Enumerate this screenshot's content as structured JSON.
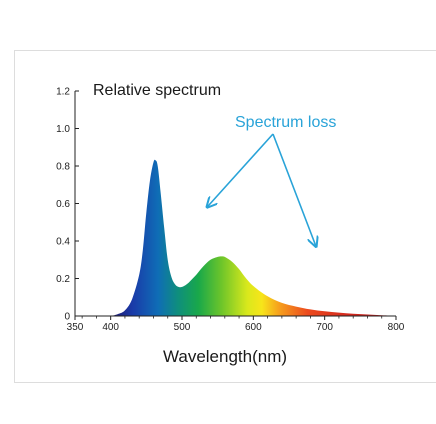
{
  "chart_data": {
    "type": "area",
    "title": "Relative spectrum",
    "xlabel": "Wavelength(nm)",
    "ylabel": "",
    "xlim": [
      350,
      800
    ],
    "ylim": [
      0,
      1.2
    ],
    "x_ticks": [
      350,
      400,
      500,
      600,
      700,
      800
    ],
    "x_tick_labels": [
      "350",
      "400",
      "500",
      "600",
      "700",
      "800"
    ],
    "y_ticks": [
      0,
      0.2,
      0.4,
      0.6,
      0.8,
      1.0,
      1.2
    ],
    "y_tick_labels": [
      "0",
      "0.2",
      "0.4",
      "0.6",
      "0.8",
      "1.0",
      "1.2"
    ],
    "grid": false,
    "legend": "none",
    "series": [
      {
        "fill": "visible-spectrum gradient",
        "x": [
          400,
          410,
          420,
          430,
          440,
          445,
          450,
          455,
          460,
          463,
          466,
          470,
          475,
          480,
          485,
          490,
          495,
          500,
          505,
          510,
          520,
          530,
          540,
          550,
          555,
          560,
          570,
          580,
          590,
          600,
          620,
          640,
          660,
          680,
          700,
          720,
          740,
          760,
          780,
          800
        ],
        "y": [
          0,
          0.01,
          0.03,
          0.09,
          0.22,
          0.35,
          0.55,
          0.72,
          0.82,
          0.83,
          0.8,
          0.66,
          0.47,
          0.3,
          0.21,
          0.17,
          0.155,
          0.155,
          0.165,
          0.18,
          0.22,
          0.265,
          0.3,
          0.315,
          0.318,
          0.315,
          0.29,
          0.25,
          0.2,
          0.16,
          0.105,
          0.07,
          0.05,
          0.035,
          0.025,
          0.018,
          0.012,
          0.008,
          0.004,
          0
        ]
      }
    ],
    "annotations": [
      {
        "text": "Spectrum loss",
        "color": "#29a3d8",
        "arrow_targets": [
          {
            "x": 535,
            "y": 0.58
          },
          {
            "x": 688,
            "y": 0.37
          }
        ]
      }
    ]
  }
}
